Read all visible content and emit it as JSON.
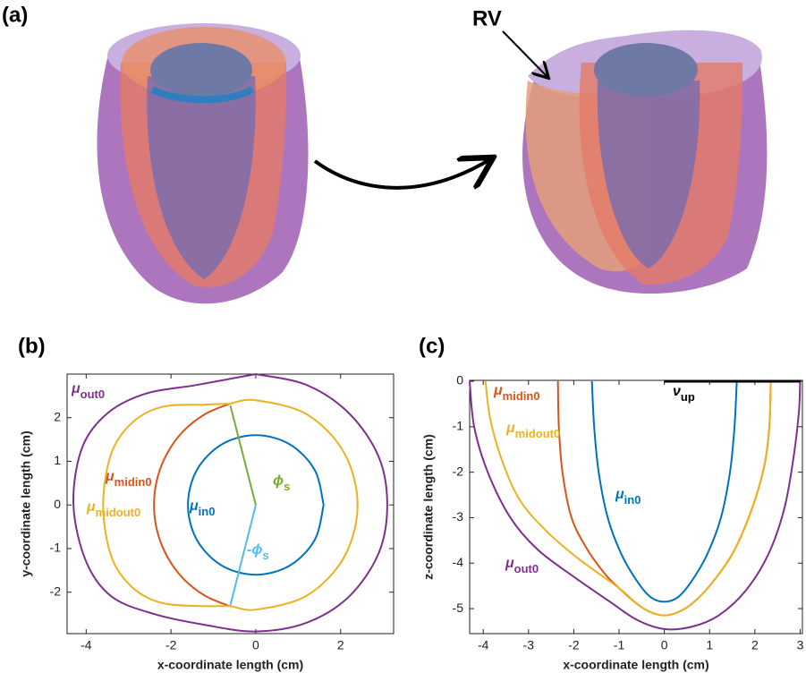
{
  "panel_a": {
    "label": "(a)",
    "annotation": "RV"
  },
  "chart_data": [
    {
      "type": "line",
      "panel_label": "(b)",
      "xlabel": "x-coordinate length (cm)",
      "ylabel": "y-coordinate length (cm)",
      "xlim": [
        -4.45,
        3.25
      ],
      "ylim": [
        -2.95,
        3.0
      ],
      "xticks": [
        -4,
        -2,
        0,
        2
      ],
      "yticks": [
        -2,
        -1,
        0,
        1,
        2
      ],
      "series": [
        {
          "name": "μ",
          "name_sub": "out0",
          "color": "#7E2F8E",
          "x": [
            0,
            1.2,
            2.2,
            2.9,
            3.1,
            2.9,
            2.2,
            1.2,
            0,
            -1.2,
            -2.4,
            -3.4,
            -4.0,
            -4.3,
            -4.1,
            -3.5,
            -2.6,
            -1.4,
            0
          ],
          "y": [
            3.0,
            2.75,
            2.1,
            1.1,
            0,
            -1.1,
            -2.1,
            -2.7,
            -2.9,
            -2.75,
            -2.5,
            -2.1,
            -1.3,
            0,
            1.3,
            2.1,
            2.55,
            2.75,
            3.0
          ]
        },
        {
          "name": "μ",
          "name_sub": "midin0",
          "color": "#D95319",
          "x": [
            -0.62,
            -1.2,
            -1.7,
            -2.08,
            -2.32,
            -2.4,
            -2.32,
            -2.08,
            -1.7,
            -1.2,
            -0.62
          ],
          "y": [
            2.32,
            2.08,
            1.7,
            1.2,
            0.62,
            0,
            -0.62,
            -1.2,
            -1.7,
            -2.08,
            -2.32
          ]
        },
        {
          "name": "μ",
          "name_sub": "midout0",
          "color": "#EDB120",
          "x": [
            -0.62,
            0,
            1.2,
            2.08,
            2.4,
            2.08,
            1.2,
            0,
            -0.62,
            -1.2,
            -2.2,
            -2.9,
            -3.4,
            -3.6,
            -3.4,
            -2.9,
            -2.2,
            -1.2,
            -0.62
          ],
          "y": [
            2.32,
            2.4,
            2.08,
            1.2,
            0,
            -1.2,
            -2.08,
            -2.4,
            -2.32,
            -2.32,
            -2.25,
            -1.9,
            -1.2,
            0,
            1.2,
            1.9,
            2.25,
            2.3,
            2.32
          ]
        },
        {
          "name": "μ",
          "name_sub": "in0",
          "color": "#0072BD",
          "x": [
            1.6,
            1.39,
            0.8,
            0,
            -0.8,
            -1.39,
            -1.6,
            -1.39,
            -0.8,
            0,
            0.8,
            1.39,
            1.6
          ],
          "y": [
            0,
            0.8,
            1.39,
            1.6,
            1.39,
            0.8,
            0,
            -0.8,
            -1.39,
            -1.6,
            -1.39,
            -0.8,
            0
          ]
        },
        {
          "name": "ϕ",
          "name_sub": "s",
          "color": "#77AC30",
          "x": [
            0,
            -0.6
          ],
          "y": [
            0,
            2.28
          ]
        },
        {
          "name": "-ϕ",
          "name_sub": "s",
          "color": "#4DBEEE",
          "x": [
            0,
            -0.6
          ],
          "y": [
            0,
            -2.3
          ]
        }
      ]
    },
    {
      "type": "line",
      "panel_label": "(c)",
      "xlabel": "x-coordinate length (cm)",
      "ylabel": "z-coordinate length (cm)",
      "xlim": [
        -4.3,
        3.05
      ],
      "ylim": [
        -5.55,
        0.02
      ],
      "xticks": [
        -4,
        -3,
        -2,
        -1,
        0,
        1,
        2,
        3
      ],
      "yticks": [
        -5,
        -4,
        -3,
        -2,
        -1,
        0
      ],
      "series": [
        {
          "name": "μ",
          "name_sub": "midin0",
          "color": "#D95319",
          "x": [
            -2.35,
            -2.33,
            -2.25,
            -2.05,
            -1.7,
            -1.3,
            -1.0,
            -0.6,
            -0.3,
            0,
            0.3,
            0.6,
            1.0,
            1.5,
            1.9,
            2.2,
            2.32,
            2.35
          ],
          "y": [
            0,
            -1,
            -2,
            -3,
            -3.7,
            -4.25,
            -4.55,
            -4.9,
            -5.08,
            -5.15,
            -5.08,
            -4.9,
            -4.5,
            -3.8,
            -2.9,
            -1.9,
            -1,
            0
          ]
        },
        {
          "name": "μ",
          "name_sub": "midout0",
          "color": "#EDB120",
          "x": [
            -3.95,
            -3.85,
            -3.6,
            -3.2,
            -2.6,
            -1.9,
            -1.0,
            -0.6,
            -0.3,
            0,
            0.3,
            0.6,
            1.0,
            1.5,
            1.9,
            2.2,
            2.32,
            2.35
          ],
          "y": [
            0,
            -0.8,
            -1.7,
            -2.6,
            -3.3,
            -3.9,
            -4.55,
            -4.9,
            -5.08,
            -5.15,
            -5.08,
            -4.9,
            -4.5,
            -3.8,
            -2.9,
            -1.9,
            -1,
            0
          ]
        },
        {
          "name": "μ",
          "name_sub": "in0",
          "color": "#0072BD",
          "x": [
            -1.6,
            -1.55,
            -1.45,
            -1.25,
            -0.95,
            -0.6,
            -0.3,
            0,
            0.3,
            0.6,
            0.95,
            1.25,
            1.45,
            1.55,
            1.6
          ],
          "y": [
            0,
            -1,
            -2,
            -3,
            -3.8,
            -4.4,
            -4.75,
            -4.85,
            -4.75,
            -4.4,
            -3.8,
            -3,
            -2,
            -1,
            0
          ]
        },
        {
          "name": "μ",
          "name_sub": "out0",
          "color": "#7E2F8E",
          "x": [
            -4.3,
            -4.2,
            -3.9,
            -3.4,
            -2.8,
            -2.0,
            -1.2,
            -0.6,
            0,
            0.6,
            1.2,
            1.8,
            2.3,
            2.65,
            2.85,
            2.97,
            3
          ],
          "y": [
            0,
            -1,
            -2,
            -3,
            -3.7,
            -4.3,
            -4.85,
            -5.25,
            -5.45,
            -5.4,
            -5.15,
            -4.6,
            -3.8,
            -2.8,
            -1.7,
            -0.7,
            0
          ]
        },
        {
          "name": "ν",
          "name_sub": "up",
          "color": "#000000",
          "x": [
            0,
            3
          ],
          "y": [
            0,
            0
          ]
        }
      ]
    }
  ]
}
